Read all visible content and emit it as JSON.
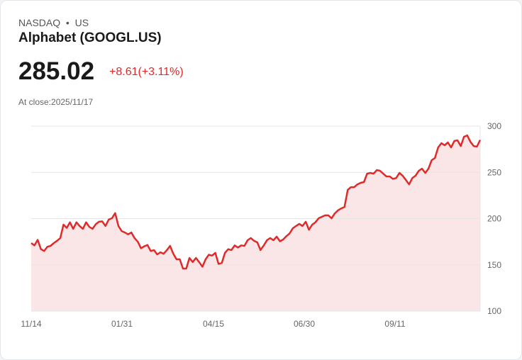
{
  "header": {
    "exchange": "NASDAQ",
    "sep": "•",
    "market": "US",
    "name": "Alphabet (GOOGL.US)",
    "price": "285.02",
    "change": "+8.61(+3.11%)",
    "close_label": "At close:2025/11/17"
  },
  "colors": {
    "line": "#e02a2a",
    "fill": "#fae6e6",
    "grid": "#e5e5e5"
  },
  "chart_data": {
    "type": "area",
    "title": "Alphabet (GOOGL.US)",
    "xlabel": "",
    "ylabel": "",
    "ylim": [
      100,
      300
    ],
    "yticks": [
      100,
      150,
      200,
      250,
      300
    ],
    "xticks": [
      "11/14",
      "01/31",
      "04/15",
      "06/30",
      "09/11"
    ],
    "grid": true,
    "series": [
      {
        "name": "GOOGL.US",
        "values": [
          173.6,
          171,
          177,
          167,
          165,
          169.6,
          170.5,
          173.6,
          176,
          179,
          193.5,
          190,
          196,
          189,
          196,
          192,
          189,
          196,
          191,
          189,
          194,
          196.6,
          197,
          192,
          199,
          200.4,
          206,
          192,
          186.6,
          185,
          183,
          185,
          179,
          175,
          168,
          170,
          171.5,
          165,
          166,
          161.3,
          163.6,
          162,
          166,
          170.5,
          162,
          156,
          156,
          146,
          146,
          157.5,
          153,
          157.5,
          153,
          148,
          156,
          161,
          160,
          163,
          151,
          152,
          163,
          167,
          166,
          171,
          168.7,
          171,
          170.5,
          176.6,
          179,
          176,
          174.3,
          166,
          171,
          176.6,
          179,
          176.6,
          180.5,
          175.5,
          177.4,
          181,
          184,
          189.6,
          192,
          194.3,
          192,
          196.6,
          188,
          193.5,
          196,
          200.4,
          202,
          203.5,
          203.5,
          200.4,
          205.7,
          209,
          211,
          212.6,
          231,
          234,
          234,
          237,
          238.7,
          239.5,
          248.6,
          249.4,
          248.6,
          252.5,
          251.7,
          248.6,
          245.6,
          245.6,
          243,
          243.9,
          249.4,
          246.4,
          241.8,
          237,
          243.9,
          246.4,
          251.7,
          254,
          249.4,
          254,
          263.2,
          265.5,
          277,
          281.6,
          279.3,
          282.4,
          277,
          284,
          284.7,
          278.5,
          288.5,
          290,
          283,
          278.5,
          277.8,
          285.02
        ]
      }
    ]
  }
}
